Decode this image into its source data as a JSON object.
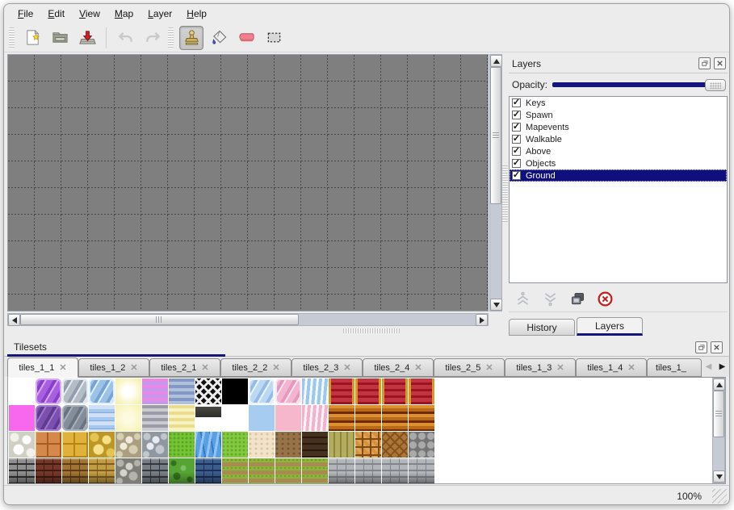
{
  "window": {
    "menu_items": [
      "File",
      "Edit",
      "View",
      "Map",
      "Layer",
      "Help"
    ],
    "status_zoom": "100%"
  },
  "toolbar": {
    "groups": [
      {
        "buttons": [
          {
            "name": "new-map-button",
            "icon": "new-file-icon"
          },
          {
            "name": "open-map-button",
            "icon": "open-folder-icon"
          },
          {
            "name": "save-map-button",
            "icon": "save-icon"
          },
          {
            "sep": true
          },
          {
            "name": "undo-button",
            "icon": "undo-icon",
            "disabled": true
          },
          {
            "name": "redo-button",
            "icon": "redo-icon",
            "disabled": true
          }
        ]
      },
      {
        "buttons": [
          {
            "name": "stamp-tool-button",
            "icon": "stamp-icon",
            "selected": true
          },
          {
            "name": "fill-tool-button",
            "icon": "fill-icon"
          },
          {
            "name": "eraser-tool-button",
            "icon": "eraser-icon"
          },
          {
            "name": "select-tool-button",
            "icon": "select-icon"
          }
        ]
      }
    ]
  },
  "layers_panel": {
    "title": "Layers",
    "opacity_label": "Opacity:",
    "opacity_value": 1.0,
    "layers": [
      {
        "label": "Keys",
        "checked": true
      },
      {
        "label": "Spawn",
        "checked": true
      },
      {
        "label": "Mapevents",
        "checked": true
      },
      {
        "label": "Walkable",
        "checked": true
      },
      {
        "label": "Above",
        "checked": true
      },
      {
        "label": "Objects",
        "checked": true
      },
      {
        "label": "Ground",
        "checked": true,
        "selected": true
      }
    ],
    "buttons": [
      {
        "name": "raise-layer-button",
        "icon": "raise-icon",
        "disabled": true
      },
      {
        "name": "lower-layer-button",
        "icon": "lower-icon",
        "disabled": true
      },
      {
        "name": "duplicate-layer-button",
        "icon": "duplicate-icon"
      },
      {
        "name": "delete-layer-button",
        "icon": "delete-icon"
      }
    ],
    "tabs": [
      {
        "label": "History",
        "active": false
      },
      {
        "label": "Layers",
        "active": true
      }
    ]
  },
  "tilesets_panel": {
    "title": "Tilesets",
    "tabs": [
      {
        "label": "tiles_1_1",
        "active": true
      },
      {
        "label": "tiles_1_2"
      },
      {
        "label": "tiles_2_1"
      },
      {
        "label": "tiles_2_2"
      },
      {
        "label": "tiles_2_3"
      },
      {
        "label": "tiles_2_4"
      },
      {
        "label": "tiles_2_5"
      },
      {
        "label": "tiles_1_3"
      },
      {
        "label": "tiles_1_4"
      },
      {
        "label": "tiles_1_",
        "truncated": true
      }
    ],
    "tiles": [
      [
        {
          "t": "solid",
          "c": [
            "#ffffff"
          ]
        },
        {
          "t": "crystal",
          "c": [
            "#a85fe0",
            "#8840cc",
            "#d8aaf4"
          ]
        },
        {
          "t": "crystal",
          "c": [
            "#b4bcc6",
            "#939eac",
            "#e6ebf2"
          ]
        },
        {
          "t": "crystal",
          "c": [
            "#9cc2e8",
            "#76a4d4",
            "#def0fc"
          ]
        },
        {
          "t": "glow",
          "c": [
            "#ffffff",
            "#f6eea0"
          ]
        },
        {
          "t": "hstripes",
          "c": [
            "#ee86e6",
            "#c09aec"
          ]
        },
        {
          "t": "hstripes",
          "c": [
            "#8098c6",
            "#b2c0da"
          ]
        },
        {
          "t": "lattice",
          "c": [
            "#101010",
            "#ececec"
          ]
        },
        {
          "t": "solid",
          "c": [
            "#000000"
          ]
        },
        {
          "t": "crystal",
          "c": [
            "#bcd8f2",
            "#94bce6",
            "#eaf4fd"
          ]
        },
        {
          "t": "crystal",
          "c": [
            "#f2b6d2",
            "#e898bc",
            "#fce6f0"
          ]
        },
        {
          "t": "waves",
          "c": [
            "#9cc8ee",
            "#f4f9ff"
          ]
        },
        {
          "t": "curtain",
          "c": [
            "#9c1424",
            "#c23440",
            "#d49a28"
          ]
        },
        {
          "t": "curtain",
          "c": [
            "#9c1424",
            "#c23440",
            "#d49a28"
          ]
        },
        {
          "t": "curtain",
          "c": [
            "#9c1424",
            "#c23440",
            "#d49a28"
          ]
        },
        {
          "t": "curtain",
          "c": [
            "#9c1424",
            "#c23440",
            "#d49a28"
          ]
        }
      ],
      [
        {
          "t": "solid",
          "c": [
            "#f768ef"
          ]
        },
        {
          "t": "crystal",
          "c": [
            "#7a4fae",
            "#5e3a8e",
            "#a078cc"
          ]
        },
        {
          "t": "crystal",
          "c": [
            "#848e9a",
            "#6a7480",
            "#a6b0bc"
          ]
        },
        {
          "t": "ripple",
          "c": [
            "#a6c6ee",
            "#cfe0f7",
            "#7fa8dc"
          ]
        },
        {
          "t": "glow",
          "c": [
            "#fdfae2",
            "#f8f2b0"
          ]
        },
        {
          "t": "hstripes",
          "c": [
            "#9c9ca8",
            "#cacad2"
          ]
        },
        {
          "t": "hstripes",
          "c": [
            "#eadc8e",
            "#f8f3c0"
          ]
        },
        {
          "t": "plaque",
          "c": [
            "#4a4a42",
            "#2e2e28"
          ]
        },
        {
          "t": "solid",
          "c": [
            "#ffffff"
          ]
        },
        {
          "t": "solid",
          "c": [
            "#a6cdf0"
          ]
        },
        {
          "t": "solid",
          "c": [
            "#f6b6cc"
          ]
        },
        {
          "t": "waves",
          "c": [
            "#f2b2cc",
            "#fdf4f8"
          ]
        },
        {
          "t": "hstripes3",
          "c": [
            "#b86a18",
            "#6e2a06",
            "#dc9030"
          ]
        },
        {
          "t": "hstripes3",
          "c": [
            "#b86a18",
            "#6e2a06",
            "#dc9030"
          ]
        },
        {
          "t": "hstripes3",
          "c": [
            "#b86a18",
            "#6e2a06",
            "#dc9030"
          ]
        },
        {
          "t": "hstripes3",
          "c": [
            "#b86a18",
            "#6e2a06",
            "#dc9030"
          ]
        }
      ],
      [
        {
          "t": "stones",
          "c": [
            "#f2f2ea",
            "#cfcfc4",
            "#ffffff"
          ]
        },
        {
          "t": "tilesq",
          "c": [
            "#d4884a",
            "#a85c24",
            "#eeb27a"
          ]
        },
        {
          "t": "tilesq",
          "c": [
            "#e0b23c",
            "#b8860e",
            "#f4d470"
          ]
        },
        {
          "t": "stones",
          "c": [
            "#e4c452",
            "#bc9626",
            "#f6e088"
          ]
        },
        {
          "t": "pebbles",
          "c": [
            "#d6cfb6",
            "#ab9f80",
            "#efeadb"
          ]
        },
        {
          "t": "pebbles",
          "c": [
            "#c2c6ce",
            "#8f97a3",
            "#e9ebef"
          ]
        },
        {
          "t": "grass",
          "c": [
            "#74c434",
            "#58a424"
          ]
        },
        {
          "t": "water",
          "c": [
            "#5a9fe4",
            "#8fc6f4",
            "#3a78c4"
          ]
        },
        {
          "t": "grass",
          "c": [
            "#84ca3e",
            "#64aa2c"
          ]
        },
        {
          "t": "speckle",
          "c": [
            "#f1e2ca",
            "#ddc4a0"
          ]
        },
        {
          "t": "speckle",
          "c": [
            "#97734a",
            "#74532e"
          ]
        },
        {
          "t": "planks",
          "c": [
            "#46301e",
            "#2a1a0e"
          ]
        },
        {
          "t": "vplanks",
          "c": [
            "#b5ad5e",
            "#8d853c"
          ]
        },
        {
          "t": "weave",
          "c": [
            "#d8903a",
            "#7e4a14"
          ]
        },
        {
          "t": "herring",
          "c": [
            "#ae7636",
            "#82511e"
          ]
        },
        {
          "t": "logs",
          "c": [
            "#aaaaaa",
            "#747474"
          ]
        }
      ],
      [
        {
          "t": "brick",
          "c": [
            "#8e8e8e",
            "#2e2e2e"
          ]
        },
        {
          "t": "brick",
          "c": [
            "#74382a",
            "#421a10"
          ]
        },
        {
          "t": "brick",
          "c": [
            "#a07434",
            "#5e3c14"
          ]
        },
        {
          "t": "brick",
          "c": [
            "#c29c44",
            "#7e5e1c"
          ]
        },
        {
          "t": "pebbles",
          "c": [
            "#b3b3ab",
            "#7e7e76",
            "#d4d4cc"
          ]
        },
        {
          "t": "brick",
          "c": [
            "#787e88",
            "#34383e"
          ]
        },
        {
          "t": "hedge",
          "c": [
            "#55a434",
            "#356e1c"
          ]
        },
        {
          "t": "brick",
          "c": [
            "#3c5c8c",
            "#1a3054"
          ]
        },
        {
          "t": "grassrows",
          "c": [
            "#8cb63c",
            "#a98a50"
          ]
        },
        {
          "t": "grassrows",
          "c": [
            "#8cb63c",
            "#a98a50"
          ]
        },
        {
          "t": "grassrows",
          "c": [
            "#8cb63c",
            "#a98a50"
          ]
        },
        {
          "t": "grassrows",
          "c": [
            "#8cb63c",
            "#a98a50"
          ]
        },
        {
          "t": "brick",
          "c": [
            "#b2b6ba",
            "#82868a"
          ]
        },
        {
          "t": "brick",
          "c": [
            "#b2b6ba",
            "#82868a"
          ]
        },
        {
          "t": "brick",
          "c": [
            "#b2b6ba",
            "#82868a"
          ]
        },
        {
          "t": "brick",
          "c": [
            "#b2b6ba",
            "#82868a"
          ]
        }
      ]
    ]
  },
  "colors": {
    "accent_navy": "#15157c",
    "selection_navy": "#0f0f7d",
    "canvas_gray": "#7f7f7f",
    "chrome": "#ececec"
  }
}
